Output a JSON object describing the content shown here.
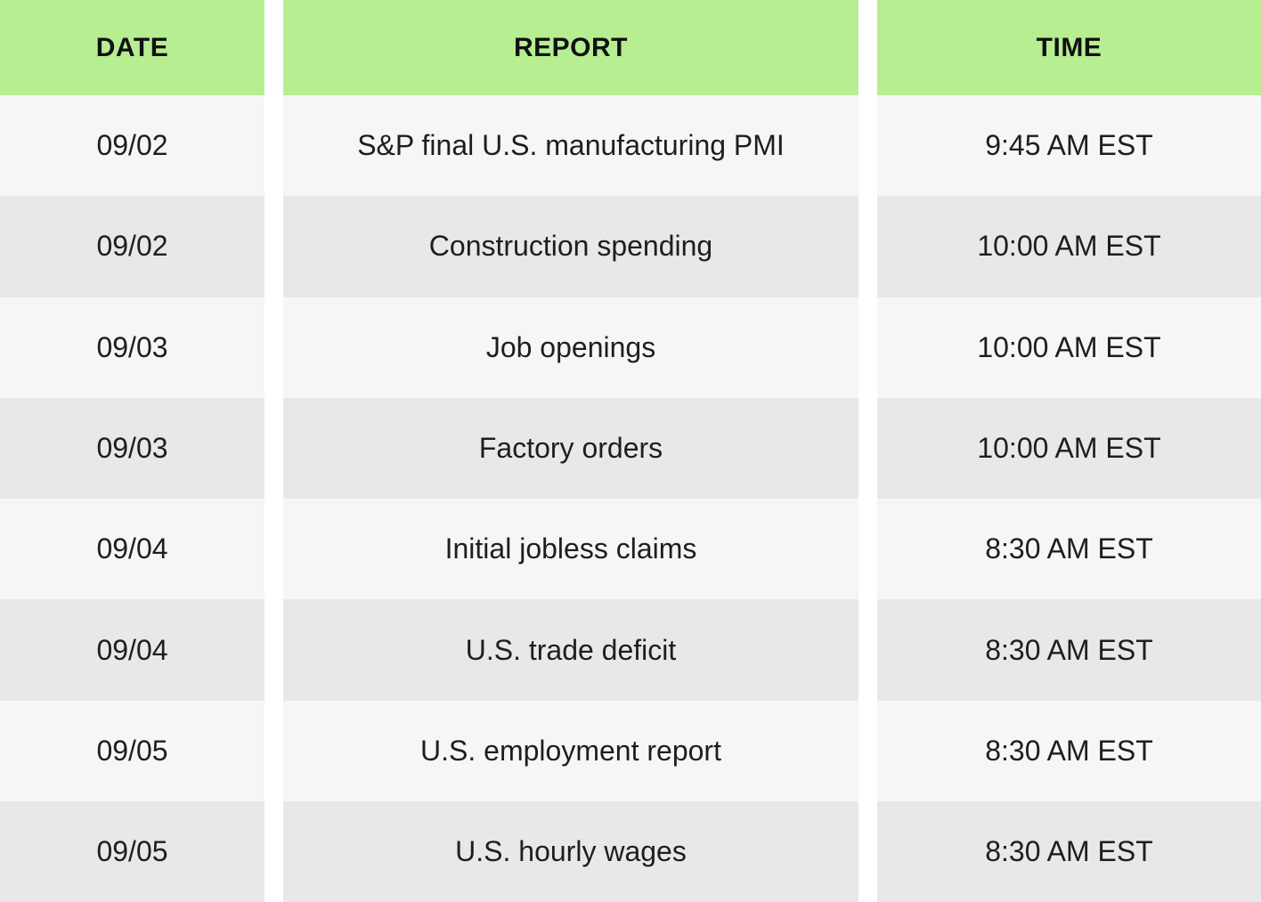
{
  "colors": {
    "header_bg": "#b7ee92",
    "row_light": "#f6f6f6",
    "row_dark": "#e8e8e8",
    "header_text": "#111111",
    "body_text": "#1e1e1e"
  },
  "chart_data": {
    "type": "table",
    "columns": [
      "DATE",
      "REPORT",
      "TIME"
    ],
    "rows": [
      [
        "09/02",
        "S&P final U.S. manufacturing PMI",
        "9:45 AM EST"
      ],
      [
        "09/02",
        "Construction spending",
        "10:00 AM EST"
      ],
      [
        "09/03",
        "Job openings",
        "10:00 AM EST"
      ],
      [
        "09/03",
        "Factory orders",
        "10:00 AM EST"
      ],
      [
        "09/04",
        "Initial jobless claims",
        "8:30 AM EST"
      ],
      [
        "09/04",
        "U.S. trade deficit",
        "8:30 AM EST"
      ],
      [
        "09/05",
        "U.S. employment report",
        "8:30 AM EST"
      ],
      [
        "09/05",
        "U.S. hourly wages",
        "8:30 AM EST"
      ]
    ]
  }
}
